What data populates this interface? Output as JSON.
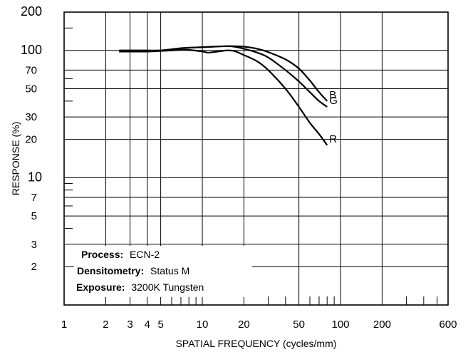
{
  "chart_data": {
    "type": "line",
    "title": "",
    "xlabel": "SPATIAL FREQUENCY (cycles/mm)",
    "ylabel": "RESPONSE (%)",
    "x_scale": "log",
    "y_scale": "log",
    "xlim": [
      1,
      600
    ],
    "ylim": [
      1,
      200
    ],
    "x_tick_labels": [
      "1",
      "2",
      "3",
      "4",
      "5",
      "10",
      "20",
      "50",
      "100",
      "200",
      "600"
    ],
    "x_tick_values": [
      1,
      2,
      3,
      4,
      5,
      10,
      20,
      50,
      100,
      200,
      600
    ],
    "y_tick_labels": [
      "200",
      "100",
      "70",
      "50",
      "30",
      "20",
      "10",
      "7",
      "5",
      "3",
      "2"
    ],
    "y_tick_values": [
      200,
      100,
      70,
      50,
      30,
      20,
      10,
      7,
      5,
      3,
      2
    ],
    "grid": true,
    "series": [
      {
        "name": "B",
        "x": [
          2.5,
          3,
          4,
          5,
          6,
          7,
          8,
          10,
          12,
          15,
          17,
          20,
          25,
          30,
          40,
          50,
          60,
          70,
          80
        ],
        "y": [
          100,
          100,
          100,
          100,
          102,
          104,
          105,
          106,
          107,
          108,
          108,
          107,
          103,
          97,
          85,
          72,
          58,
          47,
          40
        ]
      },
      {
        "name": "G",
        "x": [
          2.5,
          3,
          4,
          5,
          6,
          7,
          8,
          10,
          12,
          15,
          17,
          20,
          25,
          30,
          40,
          50,
          60,
          70,
          80
        ],
        "y": [
          99,
          99,
          99,
          100,
          102,
          104,
          105,
          106,
          107,
          108,
          107,
          103,
          96,
          88,
          70,
          57,
          47,
          40,
          36
        ]
      },
      {
        "name": "R",
        "x": [
          2.5,
          3,
          4,
          5,
          6,
          7,
          8,
          10,
          11,
          12,
          14,
          15,
          17,
          20,
          25,
          30,
          40,
          50,
          60,
          70,
          80
        ],
        "y": [
          98,
          98,
          98,
          99,
          100,
          101,
          101,
          98,
          96,
          97,
          99,
          100,
          99,
          92,
          82,
          70,
          50,
          36,
          27,
          22,
          18
        ]
      }
    ],
    "annotations": [
      {
        "label": "Process:",
        "value": "ECN-2"
      },
      {
        "label": "Densitometry:",
        "value": "Status M"
      },
      {
        "label": "Exposure:",
        "value": "3200K Tungsten"
      }
    ]
  }
}
